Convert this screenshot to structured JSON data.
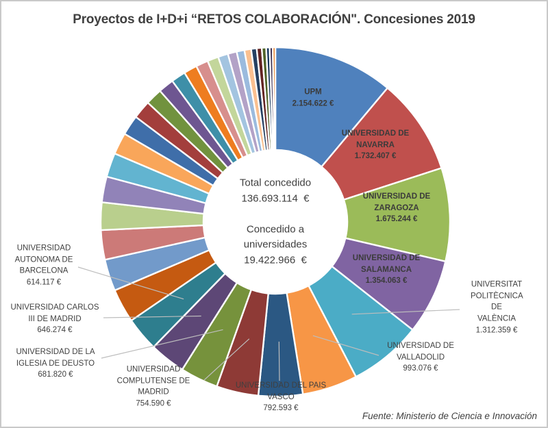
{
  "title": "Proyectos de I+D+i “RETOS COLABORACIÓN\". Concesiones 2019",
  "center_text": "Total concedido\n136.693.114  €\n\nConcedido a\nuniversidades\n19.422.966  €",
  "footer": "Fuente: Ministerio de Ciencia e Innovación",
  "chart_data": {
    "type": "pie",
    "subtype": "donut",
    "title": "Proyectos de I+D+i “RETOS COLABORACIÓN\". Concesiones 2019",
    "totals": {
      "total_concedido_eur": 136693114,
      "concedido_a_universidades_eur": 19422966
    },
    "source": "Fuente: Ministerio de Ciencia e Innovación",
    "legend_position": "none",
    "note": "Slices without label_text are unlabeled in the chart; their values are estimated from arc length so all 36 slices sum to 19.422.966 €",
    "slices": [
      {
        "id": "upm",
        "name": "UPM",
        "value": 2154622,
        "color": "#4F81BD",
        "label_type": "inside",
        "label_text": "UPM\n2.154.622 €"
      },
      {
        "id": "navarra",
        "name": "UNIVERSIDAD DE NAVARRA",
        "value": 1732407,
        "color": "#C0504D",
        "label_type": "inside",
        "label_text": "UNIVERSIDAD DE\nNAVARRA\n1.732.407 €"
      },
      {
        "id": "zaragoza",
        "name": "UNIVERSIDAD DE ZARAGOZA",
        "value": 1675244,
        "color": "#9BBB59",
        "label_type": "inside",
        "label_text": "UNIVERSIDAD DE\nZARAGOZA\n1.675.244 €"
      },
      {
        "id": "salamanca",
        "name": "UNIVERSIDAD DE SALAMANCA",
        "value": 1354063,
        "color": "#8064A2",
        "label_type": "inside",
        "label_text": "UNIVERSIDAD DE\nSALAMANCA\n1.354.063 €"
      },
      {
        "id": "valencia",
        "name": "UNIVERSITAT POLITÈCNICA DE VALÈNCIA",
        "value": 1312359,
        "color": "#4BACC6",
        "label_type": "callout",
        "label_text": "UNIVERSITAT\nPOLITÈCNICA DE\nVALÈNCIA\n1.312.359 €"
      },
      {
        "id": "valladolid",
        "name": "UNIVERSIDAD DE VALLADOLID",
        "value": 993076,
        "color": "#F79646",
        "label_type": "callout",
        "label_text": "UNIVERSIDAD DE\nVALLADOLID\n993.076 €"
      },
      {
        "id": "pais-vasco",
        "name": "UNIVERSIDAD DEL PAIS VASCO",
        "value": 792593,
        "color": "#2B5883",
        "label_type": "callout",
        "label_text": "UNIVERSIDAD DEL PAIS\nVASCO\n792.593 €"
      },
      {
        "id": "complutense",
        "name": "UNIVERSIDAD COMPLUTENSE DE MADRID",
        "value": 754590,
        "color": "#8E3A36",
        "label_type": "callout",
        "label_text": "UNIVERSIDAD\nCOMPLUTENSE DE\nMADRID\n754.590 €"
      },
      {
        "id": "deusto",
        "name": "UNIVERSIDAD DE LA IGLESIA DE DEUSTO",
        "value": 681820,
        "color": "#76923C",
        "label_type": "callout",
        "label_text": "UNIVERSIDAD DE LA\nIGLESIA DE DEUSTO\n681.820 €"
      },
      {
        "id": "carlos-iii",
        "name": "UNIVERSIDAD CARLOS III DE MADRID",
        "value": 646274,
        "color": "#5D4776",
        "label_type": "callout",
        "label_text": "UNIVERSIDAD CARLOS\nIII DE MADRID\n646.274 €"
      },
      {
        "id": "barcelona",
        "name": "UNIVERSIDAD AUTONOMA DE BARCELONA",
        "value": 614117,
        "color": "#2E7E8E",
        "label_type": "callout",
        "label_text": "UNIVERSIDAD\nAUTONOMA DE\nBARCELONA\n614.117 €"
      },
      {
        "id": "other-1",
        "name": "",
        "value": 610000,
        "color": "#C55A11",
        "label_type": "none",
        "label_text": ""
      },
      {
        "id": "other-2",
        "name": "",
        "value": 570000,
        "color": "#729ACA",
        "label_type": "none",
        "label_text": ""
      },
      {
        "id": "other-3",
        "name": "",
        "value": 530000,
        "color": "#CC7A78",
        "label_type": "none",
        "label_text": ""
      },
      {
        "id": "other-4",
        "name": "",
        "value": 495000,
        "color": "#B9CF8D",
        "label_type": "none",
        "label_text": ""
      },
      {
        "id": "other-5",
        "name": "",
        "value": 462000,
        "color": "#9183B8",
        "label_type": "none",
        "label_text": ""
      },
      {
        "id": "other-6",
        "name": "",
        "value": 433000,
        "color": "#62B4D0",
        "label_type": "none",
        "label_text": ""
      },
      {
        "id": "other-7",
        "name": "",
        "value": 390000,
        "color": "#F9A65A",
        "label_type": "none",
        "label_text": ""
      },
      {
        "id": "other-8",
        "name": "",
        "value": 360000,
        "color": "#3F6EA9",
        "label_type": "none",
        "label_text": ""
      },
      {
        "id": "other-9",
        "name": "",
        "value": 330000,
        "color": "#A33E3C",
        "label_type": "none",
        "label_text": ""
      },
      {
        "id": "other-10",
        "name": "",
        "value": 300000,
        "color": "#71923E",
        "label_type": "none",
        "label_text": ""
      },
      {
        "id": "other-11",
        "name": "",
        "value": 280000,
        "color": "#6E5691",
        "label_type": "none",
        "label_text": ""
      },
      {
        "id": "other-12",
        "name": "",
        "value": 260000,
        "color": "#3E8FA8",
        "label_type": "none",
        "label_text": ""
      },
      {
        "id": "other-13",
        "name": "",
        "value": 240000,
        "color": "#EE7D20",
        "label_type": "none",
        "label_text": ""
      },
      {
        "id": "other-14",
        "name": "",
        "value": 220000,
        "color": "#D78F8D",
        "label_type": "none",
        "label_text": ""
      },
      {
        "id": "other-15",
        "name": "",
        "value": 200000,
        "color": "#C3D69B",
        "label_type": "none",
        "label_text": ""
      },
      {
        "id": "other-16",
        "name": "",
        "value": 180000,
        "color": "#A3C4E0",
        "label_type": "none",
        "label_text": ""
      },
      {
        "id": "other-17",
        "name": "",
        "value": 160000,
        "color": "#B3A2C7",
        "label_type": "none",
        "label_text": ""
      },
      {
        "id": "other-18",
        "name": "",
        "value": 140000,
        "color": "#9BBBDE",
        "label_type": "none",
        "label_text": ""
      },
      {
        "id": "other-19",
        "name": "",
        "value": 120000,
        "color": "#FAC090",
        "label_type": "none",
        "label_text": ""
      },
      {
        "id": "other-20",
        "name": "",
        "value": 100000,
        "color": "#254061",
        "label_type": "none",
        "label_text": ""
      },
      {
        "id": "other-21",
        "name": "",
        "value": 90000,
        "color": "#632423",
        "label_type": "none",
        "label_text": ""
      },
      {
        "id": "other-22",
        "name": "",
        "value": 78000,
        "color": "#4F6228",
        "label_type": "none",
        "label_text": ""
      },
      {
        "id": "other-23",
        "name": "",
        "value": 62000,
        "color": "#17365D",
        "label_type": "none",
        "label_text": ""
      },
      {
        "id": "other-24",
        "name": "",
        "value": 55801,
        "color": "#403152",
        "label_type": "none",
        "label_text": ""
      },
      {
        "id": "other-25",
        "name": "",
        "value": 46000,
        "color": "#E36C09",
        "label_type": "none",
        "label_text": ""
      }
    ]
  }
}
